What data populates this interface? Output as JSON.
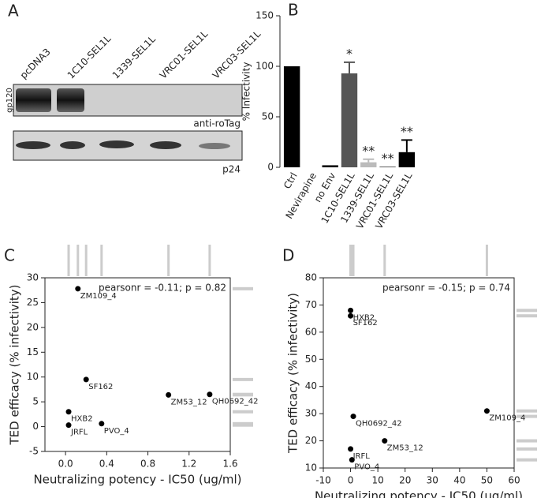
{
  "blot": {
    "panel_label": "A",
    "lanes": [
      "pcDNA3",
      "1C10-SEL1L",
      "1339-SEL1L",
      "VRC01-SEL1L",
      "VRC03-SEL1L"
    ],
    "row_label": "gp120",
    "band_labels": [
      "anti-roTag",
      "p24"
    ]
  },
  "chart_data": [
    {
      "type": "bar",
      "panel_label": "B",
      "ylabel": "% Infectivity",
      "categories": [
        "Ctrl",
        "Nevirapine",
        "no Env",
        "1C10-SEL1L",
        "1339-SEL1L",
        "VRC01-SEL1L",
        "VRC03-SEL1L"
      ],
      "values": [
        100,
        0,
        2,
        93,
        5,
        0.5,
        15
      ],
      "errors": [
        0,
        0,
        0,
        11,
        3,
        0,
        12
      ],
      "colors": [
        "#000000",
        "#000000",
        "#000000",
        "#555555",
        "#bbbbbb",
        "#000000",
        "#000000"
      ],
      "annotations": [
        null,
        null,
        null,
        "*",
        "**",
        "**",
        "**"
      ],
      "ylim": [
        0,
        150
      ],
      "yticks": [
        0,
        50,
        100,
        150
      ]
    },
    {
      "type": "scatter",
      "panel_label": "C",
      "xlabel": "Neutralizing potency - IC50 (ug/ml)",
      "ylabel": "TED efficacy (% infectivity)",
      "annotation": "pearsonr = -0.11; p = 0.82",
      "labels": [
        "ZM109_4",
        "SF162",
        "HXB2",
        "JRFL",
        "PVO_4",
        "ZM53_12",
        "QH0692_42"
      ],
      "x": [
        0.12,
        0.2,
        0.03,
        0.03,
        0.35,
        1.0,
        1.4
      ],
      "values": [
        27.8,
        9.5,
        3,
        0.3,
        0.6,
        6.4,
        6.5
      ],
      "xlim": [
        -0.2,
        1.6
      ],
      "xticks": [
        {
          "value": 0,
          "label": "0.0"
        },
        {
          "value": 0.4,
          "label": "0.4"
        },
        {
          "value": 0.8,
          "label": "0.8"
        },
        {
          "value": 1.2,
          "label": "1.2"
        },
        {
          "value": 1.6,
          "label": "1.6"
        }
      ],
      "ylim": [
        -5,
        30
      ],
      "yticks": [
        -5,
        0,
        5,
        10,
        15,
        20,
        25,
        30
      ]
    },
    {
      "type": "scatter",
      "panel_label": "D",
      "xlabel": "Neutralizing potency - IC50 (ug/ml)",
      "ylabel": "TED efficacy (% infectivity)",
      "annotation": "pearsonr = -0.15; p = 0.74",
      "labels": [
        "HXB2",
        "SF162",
        "QH0692_42",
        "ZM109_4",
        "JRFL",
        "ZM53_12",
        "PVO_4"
      ],
      "x": [
        0,
        0,
        1,
        50,
        0,
        12.5,
        0.5
      ],
      "values": [
        68,
        66,
        29,
        31,
        17,
        20,
        13
      ],
      "xlim": [
        -10,
        60
      ],
      "xticks": [
        -10,
        0,
        10,
        20,
        30,
        40,
        50,
        60
      ],
      "ylim": [
        10,
        80
      ],
      "yticks": [
        10,
        20,
        30,
        40,
        50,
        60,
        70,
        80
      ]
    }
  ]
}
